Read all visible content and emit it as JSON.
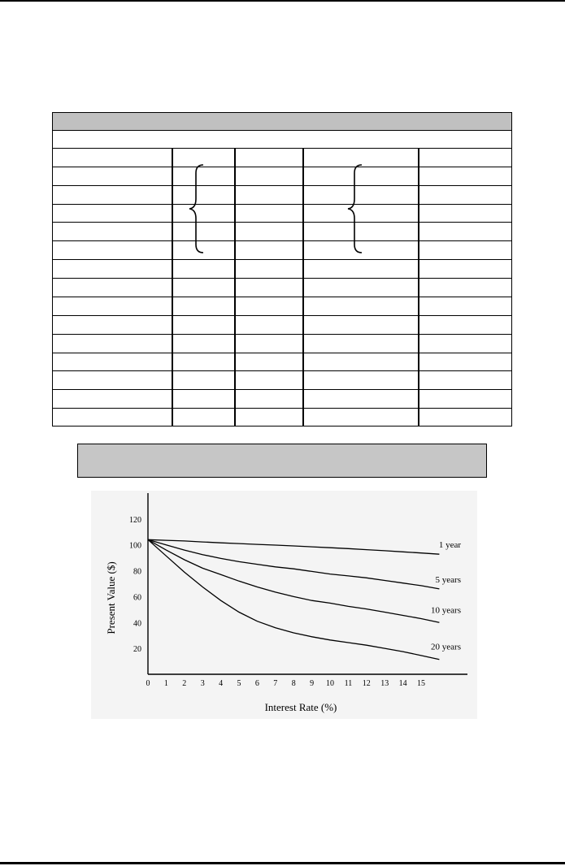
{
  "table": {
    "header_text": "",
    "column_count": 5,
    "body_row_count": 15
  },
  "caption": {
    "text": ""
  },
  "chart_data": {
    "type": "line",
    "title": "",
    "xlabel": "Interest Rate (%)",
    "ylabel": "Present Value ($)",
    "x_ticks": [
      "0",
      "1",
      "2",
      "3",
      "4",
      "5",
      "6",
      "7",
      "8",
      "9",
      "10",
      "11",
      "12",
      "13",
      "14",
      "15"
    ],
    "y_ticks": [
      "20",
      "40",
      "60",
      "80",
      "100",
      "120"
    ],
    "xlim": [
      0,
      16.5
    ],
    "ylim": [
      0,
      140
    ],
    "x": [
      0,
      1,
      2,
      3,
      4,
      5,
      6,
      7,
      8,
      9,
      10,
      11,
      12,
      13,
      14,
      15,
      16
    ],
    "series": [
      {
        "name": "1 year",
        "values": [
          104,
          103.5,
          103,
          102.3,
          101.6,
          101,
          100.4,
          99.8,
          99.2,
          98.5,
          97.8,
          97.1,
          96.3,
          95.5,
          94.6,
          93.7,
          92.8
        ]
      },
      {
        "name": "5 years",
        "values": [
          104,
          100,
          96,
          92.5,
          89.5,
          87,
          85,
          83,
          81.5,
          79.5,
          77.5,
          76,
          74.5,
          72.5,
          70.5,
          68.5,
          66
        ]
      },
      {
        "name": "10 years",
        "values": [
          104,
          96,
          88.5,
          82,
          77,
          72,
          67.5,
          63.5,
          60,
          57,
          55,
          52.5,
          50.5,
          48,
          45.5,
          43,
          40
        ]
      },
      {
        "name": "20 years",
        "values": [
          104,
          91.5,
          79,
          67.5,
          57,
          48,
          41,
          36,
          32,
          29,
          26.5,
          24.5,
          22.5,
          20,
          17.5,
          14.5,
          11.5
        ]
      }
    ],
    "legend": "inline-labels-right",
    "grid": false
  }
}
